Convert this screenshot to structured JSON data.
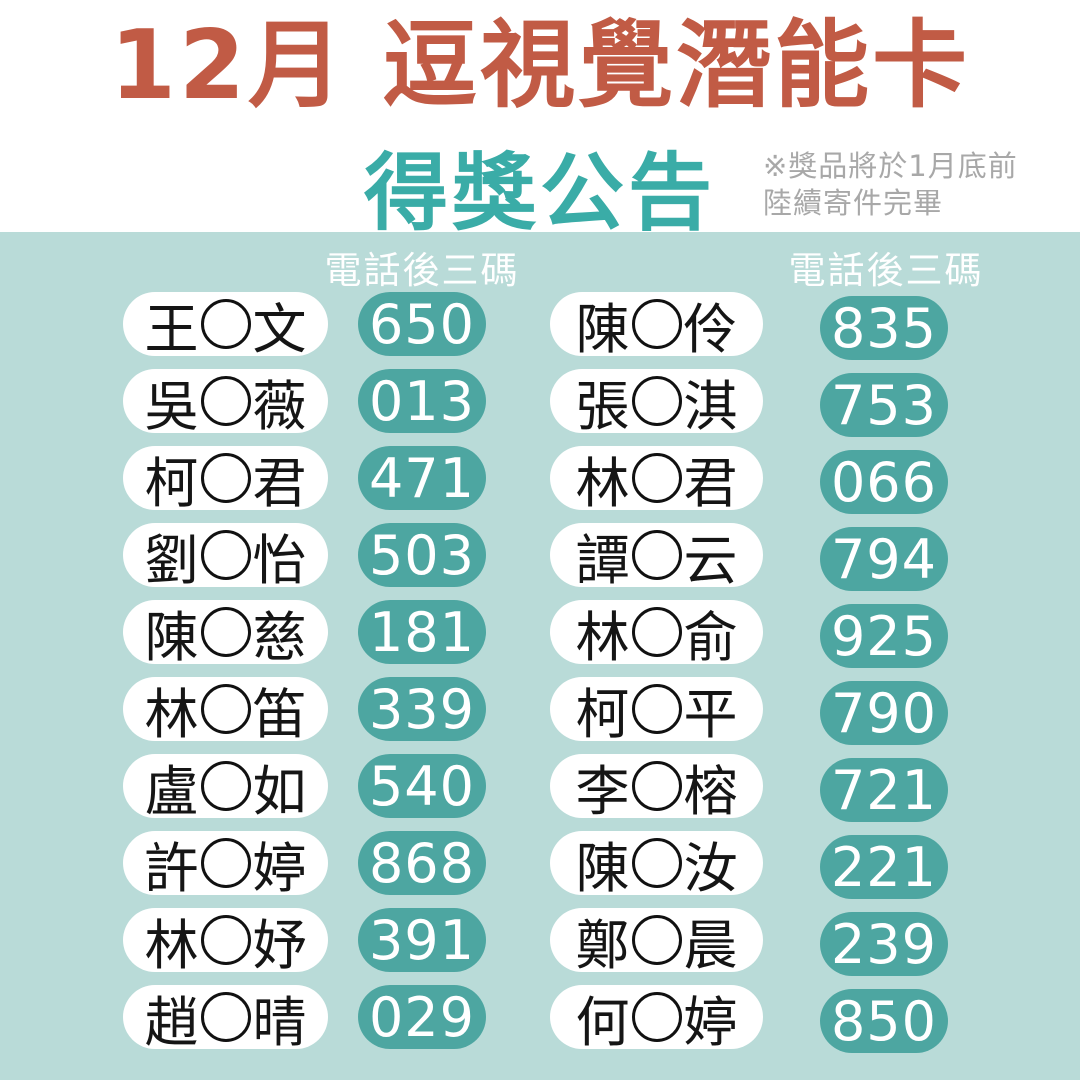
{
  "title": "12月 逗視覺潛能卡",
  "subtitle": "得獎公告",
  "note": {
    "line1": "※獎品將於1月底前",
    "line2": "陸續寄件完畢"
  },
  "column_header": "電話後三碼",
  "colors": {
    "title": "#c15b45",
    "accent_teal": "#3aaca7",
    "pill_teal": "#4da6a1",
    "panel_bg": "#b9dbd8",
    "note_gray": "#a8a8a8",
    "name_color": "#151515",
    "page_bg": "#ffffff"
  },
  "winners": {
    "left": [
      {
        "name": "王○文",
        "digits": "650"
      },
      {
        "name": "吳○薇",
        "digits": "013"
      },
      {
        "name": "柯○君",
        "digits": "471"
      },
      {
        "name": "劉○怡",
        "digits": "503"
      },
      {
        "name": "陳○慈",
        "digits": "181"
      },
      {
        "name": "林○笛",
        "digits": "339"
      },
      {
        "name": "盧○如",
        "digits": "540"
      },
      {
        "name": "許○婷",
        "digits": "868"
      },
      {
        "name": "林○妤",
        "digits": "391"
      },
      {
        "name": "趙○晴",
        "digits": "029"
      }
    ],
    "right": [
      {
        "name": "陳○伶",
        "digits": "835"
      },
      {
        "name": "張○淇",
        "digits": "753"
      },
      {
        "name": "林○君",
        "digits": "066"
      },
      {
        "name": "譚○云",
        "digits": "794"
      },
      {
        "name": "林○俞",
        "digits": "925"
      },
      {
        "name": "柯○平",
        "digits": "790"
      },
      {
        "name": "李○榕",
        "digits": "721"
      },
      {
        "name": "陳○汝",
        "digits": "221"
      },
      {
        "name": "鄭○晨",
        "digits": "239"
      },
      {
        "name": "何○婷",
        "digits": "850"
      }
    ]
  }
}
